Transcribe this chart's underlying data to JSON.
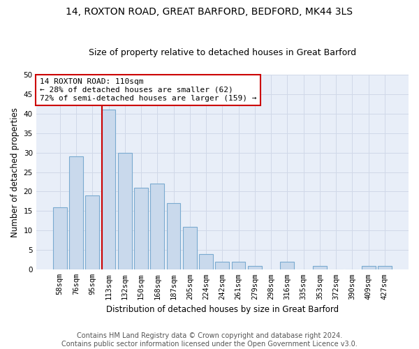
{
  "title": "14, ROXTON ROAD, GREAT BARFORD, BEDFORD, MK44 3LS",
  "subtitle": "Size of property relative to detached houses in Great Barford",
  "xlabel": "Distribution of detached houses by size in Great Barford",
  "ylabel": "Number of detached properties",
  "bar_color": "#c9d9ec",
  "bar_edgecolor": "#7aaad0",
  "categories": [
    "58sqm",
    "76sqm",
    "95sqm",
    "113sqm",
    "132sqm",
    "150sqm",
    "168sqm",
    "187sqm",
    "205sqm",
    "224sqm",
    "242sqm",
    "261sqm",
    "279sqm",
    "298sqm",
    "316sqm",
    "335sqm",
    "353sqm",
    "372sqm",
    "390sqm",
    "409sqm",
    "427sqm"
  ],
  "values": [
    16,
    29,
    19,
    41,
    30,
    21,
    22,
    17,
    11,
    4,
    2,
    2,
    1,
    0,
    2,
    0,
    1,
    0,
    0,
    1,
    1
  ],
  "ylim": [
    0,
    50
  ],
  "yticks": [
    0,
    5,
    10,
    15,
    20,
    25,
    30,
    35,
    40,
    45,
    50
  ],
  "vline_index": 2.57,
  "vline_color": "#cc0000",
  "annotation_text": "14 ROXTON ROAD: 110sqm\n← 28% of detached houses are smaller (62)\n72% of semi-detached houses are larger (159) →",
  "annotation_box_edgecolor": "#cc0000",
  "annotation_box_facecolor": "#ffffff",
  "footer_line1": "Contains HM Land Registry data © Crown copyright and database right 2024.",
  "footer_line2": "Contains public sector information licensed under the Open Government Licence v3.0.",
  "plot_bg_color": "#e8eef8",
  "fig_bg_color": "#ffffff",
  "grid_color": "#d0d8e8",
  "title_fontsize": 10,
  "subtitle_fontsize": 9,
  "xlabel_fontsize": 8.5,
  "ylabel_fontsize": 8.5,
  "tick_fontsize": 7.5,
  "annotation_fontsize": 8,
  "footer_fontsize": 7
}
